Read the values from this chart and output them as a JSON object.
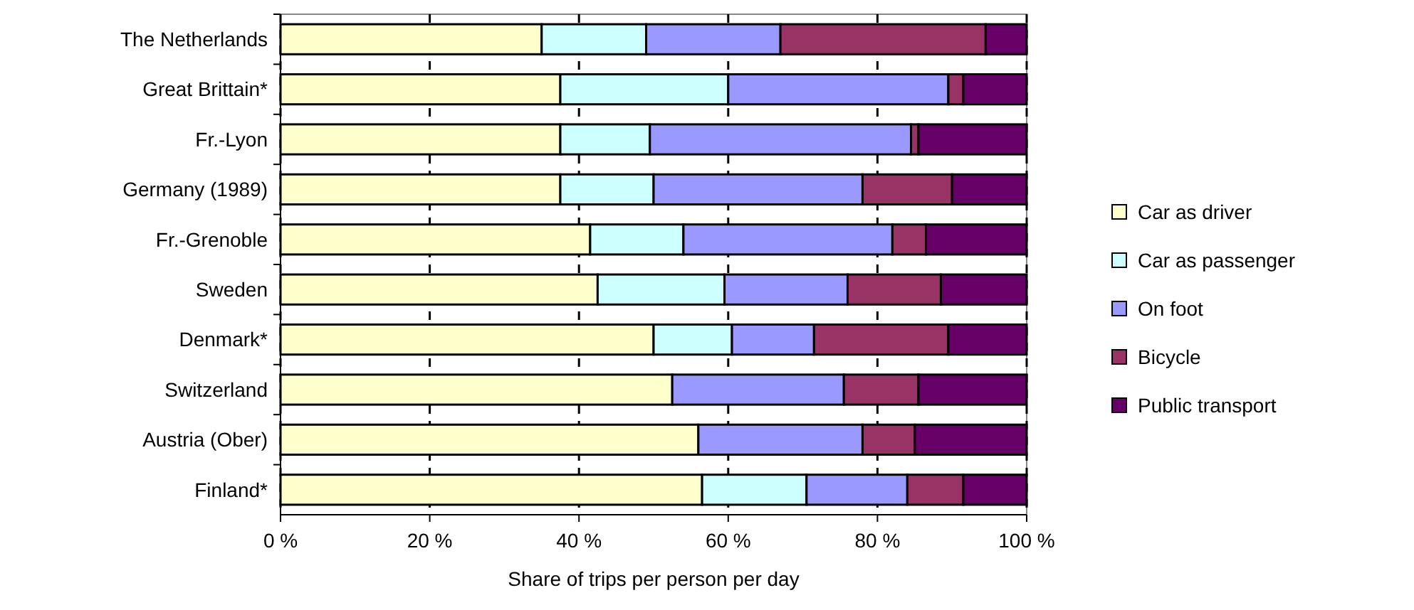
{
  "chart_data": {
    "type": "bar",
    "orientation": "horizontal",
    "stacked": true,
    "xlabel": "Share of trips per person per day",
    "categories": [
      "The Netherlands",
      "Great Brittain*",
      "Fr.-Lyon",
      "Germany (1989)",
      "Fr.-Grenoble",
      "Sweden",
      "Denmark*",
      "Switzerland",
      "Austria (Ober)",
      "Finland*"
    ],
    "series": [
      {
        "name": "Car as driver",
        "color": "#ffffcc",
        "values": [
          35,
          37.5,
          37.5,
          37.5,
          41.5,
          42.5,
          50,
          52.5,
          56,
          56.5
        ]
      },
      {
        "name": "Car as passenger",
        "color": "#ccffff",
        "values": [
          14,
          22.5,
          12,
          12.5,
          12.5,
          17,
          10.5,
          null,
          null,
          14
        ]
      },
      {
        "name": "On foot",
        "color": "#9999ff",
        "values": [
          18,
          29.5,
          35,
          28,
          28,
          16.5,
          11,
          23,
          22,
          13.5
        ]
      },
      {
        "name": "Bicycle",
        "color": "#993366",
        "values": [
          27.5,
          2,
          1,
          12,
          4.5,
          12.5,
          18,
          10,
          7,
          7.5
        ]
      },
      {
        "name": "Public transport",
        "color": "#660066",
        "values": [
          5.5,
          8.5,
          14.5,
          10,
          13.5,
          11.5,
          10.5,
          14.5,
          15,
          8.5
        ]
      }
    ],
    "xlim": [
      0,
      100
    ],
    "xticks": [
      {
        "value": 0,
        "label": "0 %"
      },
      {
        "value": 20,
        "label": "20 %"
      },
      {
        "value": 40,
        "label": "40 %"
      },
      {
        "value": 60,
        "label": "60 %"
      },
      {
        "value": 80,
        "label": "80 %"
      },
      {
        "value": 100,
        "label": "100 %"
      }
    ],
    "grid": "x",
    "legend": "right"
  }
}
